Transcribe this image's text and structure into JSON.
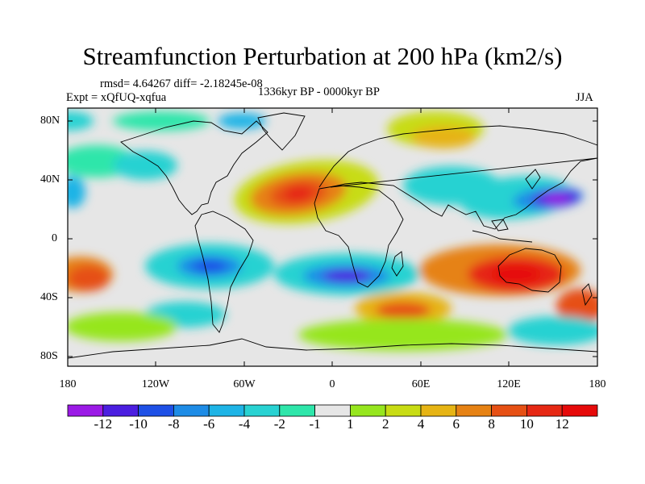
{
  "title": "Streamfunction Perturbation at 200 hPa (km2/s)",
  "stats": "rmsd= 4.64267 diff= -2.18245e-08",
  "experiment": "Expt = xQfUQ-xqfua",
  "period": "1336kyr BP - 0000kyr BP",
  "season": "JJA",
  "lat_labels": [
    "80N",
    "40N",
    "0",
    "40S",
    "80S"
  ],
  "lon_labels": [
    "180",
    "120W",
    "60W",
    "0",
    "60E",
    "120E",
    "180"
  ],
  "colorbar": {
    "labels": [
      "-12",
      "-10",
      "-8",
      "-6",
      "-4",
      "-2",
      "-1",
      "1",
      "2",
      "4",
      "6",
      "8",
      "10",
      "12"
    ],
    "colors": [
      "#9b1ae6",
      "#4b1ee0",
      "#1e50e6",
      "#1e8ce6",
      "#1eb4e6",
      "#28d2d2",
      "#2ee6aa",
      "#e6e6e6",
      "#96e61e",
      "#c8dc14",
      "#e6b414",
      "#e68214",
      "#e65014",
      "#e62814",
      "#e60a0a"
    ]
  }
}
